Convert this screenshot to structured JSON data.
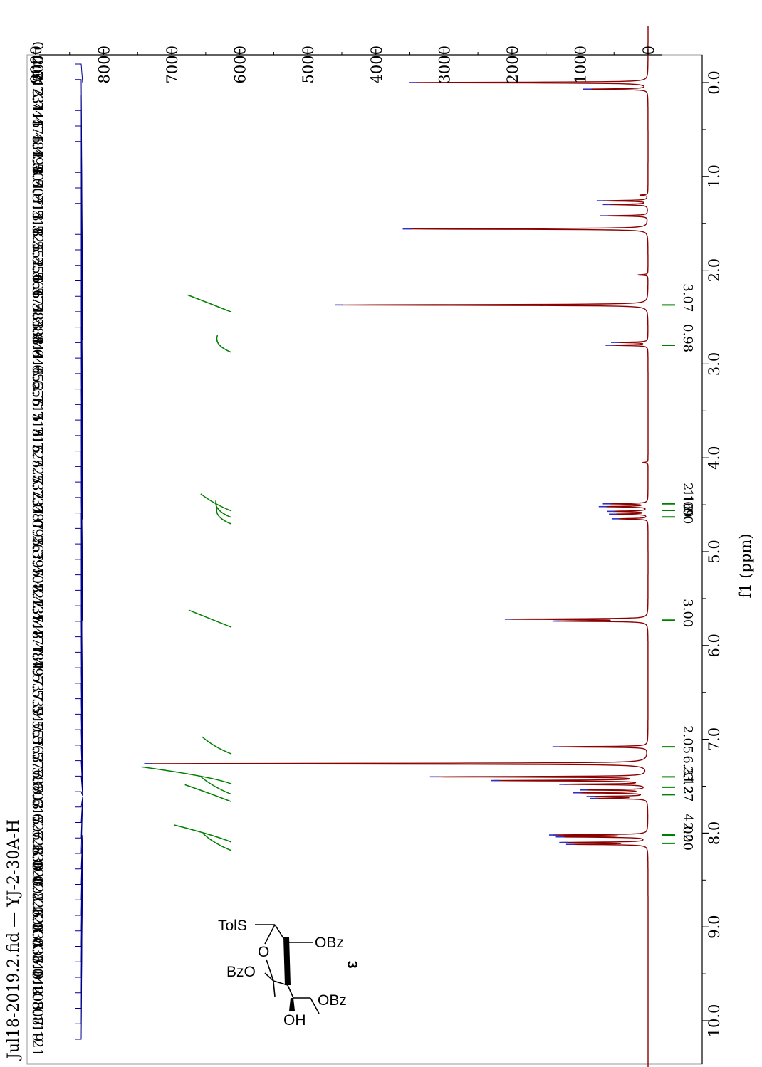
{
  "chart_data": {
    "type": "line",
    "title": "Jul18-2019.2.fid — YJ-2-30A-H",
    "xlabel": "f1 (ppm)",
    "ylabel": "",
    "xlim": [
      10.7,
      -0.6
    ],
    "ylim": [
      0,
      9000
    ],
    "x_ticks": [
      "0.0",
      "1.0",
      "2.0",
      "3.0",
      "4.0",
      "5.0",
      "6.0",
      "7.0",
      "8.0",
      "9.0",
      "10.0"
    ],
    "y_ticks": [
      "9000",
      "8000",
      "7000",
      "6000",
      "5000",
      "4000",
      "3000",
      "2000",
      "1000",
      "0"
    ],
    "peaks": [
      {
        "ppm": 0.0,
        "intensity": 3400
      },
      {
        "ppm": 0.07,
        "intensity": 850
      },
      {
        "ppm": 1.2,
        "intensity": 120
      },
      {
        "ppm": 1.26,
        "intensity": 650
      },
      {
        "ppm": 1.3,
        "intensity": 560
      },
      {
        "ppm": 1.42,
        "intensity": 600
      },
      {
        "ppm": 1.56,
        "intensity": 3500
      },
      {
        "ppm": 2.05,
        "intensity": 150
      },
      {
        "ppm": 2.37,
        "intensity": 4500
      },
      {
        "ppm": 2.77,
        "intensity": 440
      },
      {
        "ppm": 2.8,
        "intensity": 520
      },
      {
        "ppm": 4.05,
        "intensity": 80
      },
      {
        "ppm": 4.49,
        "intensity": 560
      },
      {
        "ppm": 4.52,
        "intensity": 620
      },
      {
        "ppm": 4.57,
        "intensity": 500
      },
      {
        "ppm": 4.6,
        "intensity": 470
      },
      {
        "ppm": 4.65,
        "intensity": 430
      },
      {
        "ppm": 5.72,
        "intensity": 2000
      },
      {
        "ppm": 5.74,
        "intensity": 1300
      },
      {
        "ppm": 7.08,
        "intensity": 1300
      },
      {
        "ppm": 7.26,
        "intensity": 7300
      },
      {
        "ppm": 7.4,
        "intensity": 3100
      },
      {
        "ppm": 7.44,
        "intensity": 2200
      },
      {
        "ppm": 7.48,
        "intensity": 1200
      },
      {
        "ppm": 7.54,
        "intensity": 900
      },
      {
        "ppm": 7.57,
        "intensity": 1000
      },
      {
        "ppm": 7.61,
        "intensity": 800
      },
      {
        "ppm": 7.63,
        "intensity": 750
      },
      {
        "ppm": 8.02,
        "intensity": 1350
      },
      {
        "ppm": 8.04,
        "intensity": 1250
      },
      {
        "ppm": 8.1,
        "intensity": 1200
      },
      {
        "ppm": 8.12,
        "intensity": 1100
      }
    ],
    "integrals": [
      {
        "ppm": 2.37,
        "value": "3.07"
      },
      {
        "ppm": 2.8,
        "value": "0.98"
      },
      {
        "ppm": 4.49,
        "value": "2.16"
      },
      {
        "ppm": 4.56,
        "value": "1.09"
      },
      {
        "ppm": 4.63,
        "value": "1.00"
      },
      {
        "ppm": 5.73,
        "value": "3.00"
      },
      {
        "ppm": 7.08,
        "value": "2.05"
      },
      {
        "ppm": 7.4,
        "value": "6.31"
      },
      {
        "ppm": 7.51,
        "value": "2.12"
      },
      {
        "ppm": 7.59,
        "value": "3.27"
      },
      {
        "ppm": 8.02,
        "value": "4.02"
      },
      {
        "ppm": 8.11,
        "value": "2.00"
      }
    ],
    "peak_labels": [
      "0.000",
      "2.313",
      "2.731",
      "2.745",
      "4.475",
      "4.482",
      "4.498",
      "4.504",
      "4.507",
      "4.513",
      "4.518",
      "4.525",
      "4.552",
      "4.556",
      "4.566",
      "4.574",
      "4.583",
      "4.588",
      "4.644",
      "4.648",
      "4.652",
      "4.656",
      "5.711",
      "5.714",
      "5.716",
      "5.724",
      "5.727",
      "5.732",
      "5.734",
      "7.081",
      "7.095",
      "7.261",
      "7.395",
      "7.408",
      "7.422",
      "7.435",
      "7.448",
      "7.471",
      "7.484",
      "7.497",
      "7.537",
      "7.539",
      "7.540",
      "7.551",
      "7.563",
      "7.576",
      "7.588",
      "7.603",
      "7.615",
      "7.626",
      "7.628",
      "7.630",
      "8.020",
      "8.022",
      "8.026",
      "8.028",
      "8.034",
      "8.036",
      "8.040",
      "8.042",
      "8.105",
      "8.107",
      "8.119",
      "8.121"
    ]
  },
  "molecule": {
    "labels": {
      "tols": "TolS",
      "obz_top": "OBz",
      "ring_o": "O",
      "bzo": "BzO",
      "obz_side": "OBz",
      "oh": "OH"
    },
    "compound_number": "3"
  },
  "colors": {
    "spectrum": "#8b0000",
    "integral": "#008000",
    "labels": "#00008b",
    "marker": "#3030c0",
    "axis": "#000000"
  }
}
